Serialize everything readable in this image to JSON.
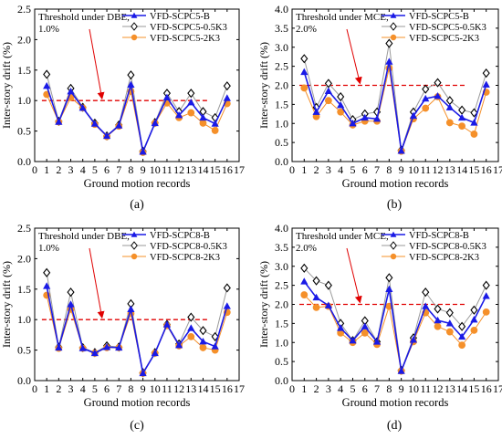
{
  "colors": {
    "series_b": "#1a1ae6",
    "series_05k3": "#000000",
    "series_2k3": "#f5902a",
    "threshold": "#e00000",
    "gray_line": "#9a9a9a"
  },
  "chart_data": [
    {
      "type": "line",
      "panel_label": "(a)",
      "xlabel": "Ground motion records",
      "ylabel": "Inter-story drift (%)",
      "xlim": [
        0,
        17
      ],
      "ylim": [
        0,
        2.5
      ],
      "xticks": [
        0,
        1,
        2,
        3,
        4,
        5,
        6,
        7,
        8,
        9,
        10,
        11,
        12,
        13,
        14,
        15,
        16,
        17
      ],
      "yticks": [
        "0.0",
        "0.5",
        "1.0",
        "1.5",
        "2.0",
        "2.5"
      ],
      "x": [
        1,
        2,
        3,
        4,
        5,
        6,
        7,
        8,
        9,
        10,
        11,
        12,
        13,
        14,
        15,
        16
      ],
      "threshold": {
        "value": 1.0,
        "line1": "Threshold under DBE,",
        "line2": "1.0%"
      },
      "legend_position": "top-right",
      "series": [
        {
          "name": "VFD-SCPC5-B",
          "values": [
            1.24,
            0.65,
            1.15,
            0.88,
            0.62,
            0.42,
            0.59,
            1.26,
            0.16,
            0.63,
            1.05,
            0.76,
            0.97,
            0.72,
            0.62,
            1.04
          ]
        },
        {
          "name": "VFD-SCPC5-0.5K3",
          "values": [
            1.43,
            0.66,
            1.2,
            0.89,
            0.63,
            0.42,
            0.6,
            1.42,
            0.17,
            0.64,
            1.12,
            0.82,
            1.12,
            0.82,
            0.72,
            1.24
          ]
        },
        {
          "name": "VFD-SCPC5-2K3",
          "values": [
            1.1,
            0.65,
            1.05,
            0.88,
            0.61,
            0.41,
            0.58,
            1.15,
            0.15,
            0.63,
            0.96,
            0.72,
            0.8,
            0.63,
            0.51,
            0.95
          ]
        }
      ]
    },
    {
      "type": "line",
      "panel_label": "(b)",
      "xlabel": "Ground motion records",
      "ylabel": "Inter-story drift (%)",
      "xlim": [
        0,
        17
      ],
      "ylim": [
        0,
        4.0
      ],
      "xticks": [
        0,
        1,
        2,
        3,
        4,
        5,
        6,
        7,
        8,
        9,
        10,
        11,
        12,
        13,
        14,
        15,
        16,
        17
      ],
      "yticks": [
        "0.0",
        "0.5",
        "1.0",
        "1.5",
        "2.0",
        "2.5",
        "3.0",
        "3.5",
        "4.0"
      ],
      "x": [
        1,
        2,
        3,
        4,
        5,
        6,
        7,
        8,
        9,
        10,
        11,
        12,
        13,
        14,
        15,
        16
      ],
      "threshold": {
        "value": 2.0,
        "line1": "Threshold under MCE,",
        "line2": "2.0%"
      },
      "legend_position": "top-right",
      "series": [
        {
          "name": "VFD-SCPC5-B",
          "values": [
            2.35,
            1.3,
            1.85,
            1.48,
            1.0,
            1.15,
            1.12,
            2.62,
            0.28,
            1.2,
            1.65,
            1.72,
            1.42,
            1.15,
            1.02,
            2.02
          ]
        },
        {
          "name": "VFD-SCPC5-0.5K3",
          "values": [
            2.7,
            1.42,
            2.05,
            1.7,
            1.1,
            1.25,
            1.3,
            3.1,
            0.3,
            1.3,
            1.9,
            2.07,
            1.6,
            1.35,
            1.28,
            2.32
          ]
        },
        {
          "name": "VFD-SCPC5-2K3",
          "values": [
            1.93,
            1.18,
            1.6,
            1.3,
            0.96,
            1.06,
            1.06,
            2.45,
            0.27,
            1.12,
            1.4,
            1.7,
            1.02,
            0.93,
            0.72,
            1.82
          ]
        }
      ]
    },
    {
      "type": "line",
      "panel_label": "(c)",
      "xlabel": "Ground motion records",
      "ylabel": "Inter-story drift (%)",
      "xlim": [
        0,
        17
      ],
      "ylim": [
        0,
        2.5
      ],
      "xticks": [
        0,
        1,
        2,
        3,
        4,
        5,
        6,
        7,
        8,
        9,
        10,
        11,
        12,
        13,
        14,
        15,
        16,
        17
      ],
      "yticks": [
        "0.0",
        "0.5",
        "1.0",
        "1.5",
        "2.0",
        "2.5"
      ],
      "x": [
        1,
        2,
        3,
        4,
        5,
        6,
        7,
        8,
        9,
        10,
        11,
        12,
        13,
        14,
        15,
        16
      ],
      "threshold": {
        "value": 1.0,
        "line1": "Threshold under DBE,",
        "line2": "1.0%"
      },
      "legend_position": "top-right",
      "series": [
        {
          "name": "VFD-SCPC8-B",
          "values": [
            1.55,
            0.54,
            1.25,
            0.53,
            0.45,
            0.55,
            0.54,
            1.17,
            0.12,
            0.45,
            0.92,
            0.58,
            0.86,
            0.64,
            0.56,
            1.22
          ]
        },
        {
          "name": "VFD-SCPC8-0.5K3",
          "values": [
            1.77,
            0.55,
            1.45,
            0.54,
            0.46,
            0.57,
            0.55,
            1.26,
            0.13,
            0.46,
            0.92,
            0.6,
            1.04,
            0.82,
            0.72,
            1.52
          ]
        },
        {
          "name": "VFD-SCPC8-2K3",
          "values": [
            1.4,
            0.53,
            1.17,
            0.53,
            0.45,
            0.54,
            0.54,
            1.1,
            0.12,
            0.45,
            0.9,
            0.57,
            0.72,
            0.54,
            0.5,
            1.12
          ]
        }
      ]
    },
    {
      "type": "line",
      "panel_label": "(d)",
      "xlabel": "Ground motion records",
      "ylabel": "Inter-story drift (%)",
      "xlim": [
        0,
        17
      ],
      "ylim": [
        0,
        4.0
      ],
      "xticks": [
        0,
        1,
        2,
        3,
        4,
        5,
        6,
        7,
        8,
        9,
        10,
        11,
        12,
        13,
        14,
        15,
        16,
        17
      ],
      "yticks": [
        "0.0",
        "0.5",
        "1.0",
        "1.5",
        "2.0",
        "2.5",
        "3.0",
        "3.5",
        "4.0"
      ],
      "x": [
        1,
        2,
        3,
        4,
        5,
        6,
        7,
        8,
        9,
        10,
        11,
        12,
        13,
        14,
        15,
        16
      ],
      "threshold": {
        "value": 2.0,
        "line1": "Threshold under MCE,",
        "line2": "2.0%"
      },
      "legend_position": "top-right",
      "series": [
        {
          "name": "VFD-SCPC8-B",
          "values": [
            2.6,
            2.18,
            1.97,
            1.38,
            1.05,
            1.42,
            1.02,
            2.4,
            0.25,
            1.07,
            1.95,
            1.58,
            1.5,
            1.15,
            1.6,
            2.22
          ]
        },
        {
          "name": "VFD-SCPC8-0.5K3",
          "values": [
            2.95,
            2.62,
            2.5,
            1.5,
            1.05,
            1.57,
            1.02,
            2.7,
            0.27,
            1.12,
            2.32,
            1.88,
            1.78,
            1.42,
            1.85,
            2.5
          ]
        },
        {
          "name": "VFD-SCPC8-2K3",
          "values": [
            2.25,
            1.92,
            1.95,
            1.25,
            1.0,
            1.25,
            0.95,
            1.95,
            0.25,
            1.02,
            1.78,
            1.42,
            1.28,
            0.93,
            1.32,
            1.8
          ]
        }
      ]
    }
  ]
}
